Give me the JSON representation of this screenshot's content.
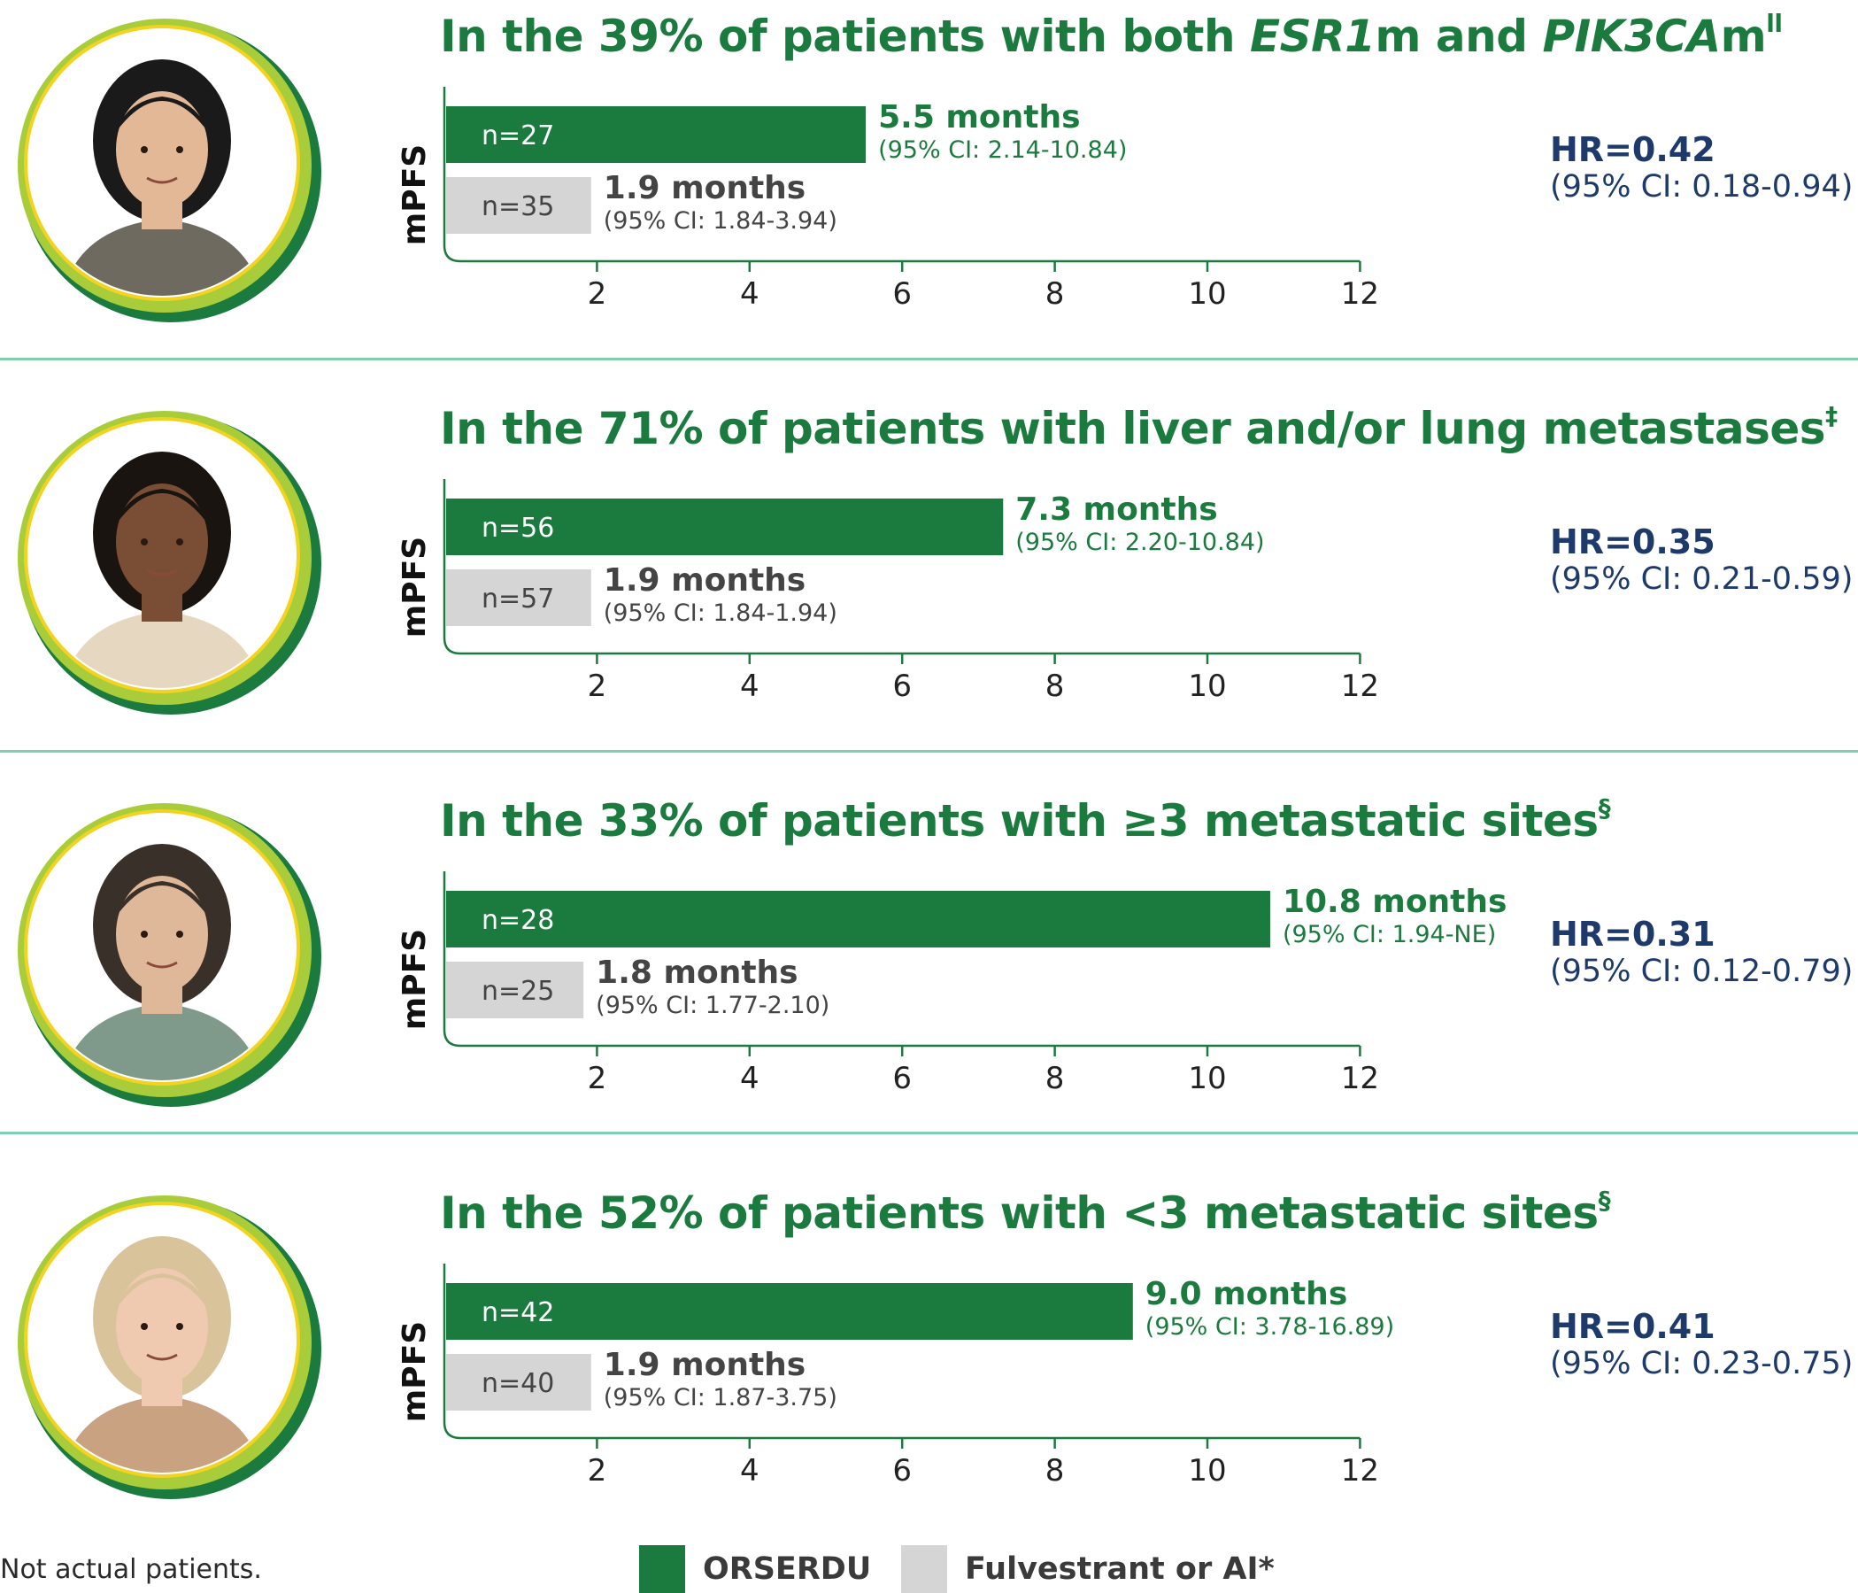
{
  "colors": {
    "orserdu": "#1b7a3e",
    "comparator": "#d5d5d5",
    "hr_text": "#1e3a6b",
    "divider": "#7fcfb0"
  },
  "chart_data": [
    {
      "type": "bar",
      "title_parts": [
        {
          "text": "In the 39% of patients with both ",
          "style": "normal"
        },
        {
          "text": "ESR1",
          "style": "italic"
        },
        {
          "text": "m and ",
          "style": "normal"
        },
        {
          "text": "PIK3CA",
          "style": "italic"
        },
        {
          "text": "m",
          "style": "normal"
        },
        {
          "text": "ll",
          "style": "sup"
        }
      ],
      "ylabel": "mPFS",
      "xticks": [
        2,
        4,
        6,
        8,
        10,
        12
      ],
      "xlim": [
        0,
        12
      ],
      "series": [
        {
          "name": "ORSERDU",
          "n": "n=27",
          "value": 5.5,
          "label": "5.5 months",
          "ci": "(95% CI: 2.14-10.84)"
        },
        {
          "name": "Fulvestrant or AI*",
          "n": "n=35",
          "value": 1.9,
          "label": "1.9 months",
          "ci": "(95% CI: 1.84-3.94)"
        }
      ],
      "hr": "HR=0.42",
      "hr_ci": "(95% CI: 0.18-0.94)"
    },
    {
      "type": "bar",
      "title_parts": [
        {
          "text": "In the 71% of patients with liver and/or lung metastases",
          "style": "normal"
        },
        {
          "text": "‡",
          "style": "sup"
        }
      ],
      "ylabel": "mPFS",
      "xticks": [
        2,
        4,
        6,
        8,
        10,
        12
      ],
      "xlim": [
        0,
        12
      ],
      "series": [
        {
          "name": "ORSERDU",
          "n": "n=56",
          "value": 7.3,
          "label": "7.3 months",
          "ci": "(95% CI: 2.20-10.84)"
        },
        {
          "name": "Fulvestrant or AI*",
          "n": "n=57",
          "value": 1.9,
          "label": "1.9 months",
          "ci": "(95% CI: 1.84-1.94)"
        }
      ],
      "hr": "HR=0.35",
      "hr_ci": "(95% CI: 0.21-0.59)"
    },
    {
      "type": "bar",
      "title_parts": [
        {
          "text": "In the 33% of patients with ≥3 metastatic sites",
          "style": "normal"
        },
        {
          "text": "§",
          "style": "sup"
        }
      ],
      "ylabel": "mPFS",
      "xticks": [
        2,
        4,
        6,
        8,
        10,
        12
      ],
      "xlim": [
        0,
        12
      ],
      "series": [
        {
          "name": "ORSERDU",
          "n": "n=28",
          "value": 10.8,
          "label": "10.8 months",
          "ci": "(95% CI: 1.94-NE)"
        },
        {
          "name": "Fulvestrant or AI*",
          "n": "n=25",
          "value": 1.8,
          "label": "1.8 months",
          "ci": "(95% CI: 1.77-2.10)"
        }
      ],
      "hr": "HR=0.31",
      "hr_ci": "(95% CI: 0.12-0.79)"
    },
    {
      "type": "bar",
      "title_parts": [
        {
          "text": "In the 52% of patients with <3 metastatic sites",
          "style": "normal"
        },
        {
          "text": "§",
          "style": "sup"
        }
      ],
      "ylabel": "mPFS",
      "xticks": [
        2,
        4,
        6,
        8,
        10,
        12
      ],
      "xlim": [
        0,
        12
      ],
      "series": [
        {
          "name": "ORSERDU",
          "n": "n=42",
          "value": 9.0,
          "label": "9.0 months",
          "ci": "(95% CI: 3.78-16.89)"
        },
        {
          "name": "Fulvestrant or AI*",
          "n": "n=40",
          "value": 1.9,
          "label": "1.9 months",
          "ci": "(95% CI: 1.87-3.75)"
        }
      ],
      "hr": "HR=0.41",
      "hr_ci": "(95% CI: 0.23-0.75)"
    }
  ],
  "avatars": [
    {
      "hair": "#1a1a1a",
      "skin": "#e2b896",
      "top": "#6e6a60"
    },
    {
      "hair": "#1a1410",
      "skin": "#7a4e34",
      "top": "#e6d8c0"
    },
    {
      "hair": "#3a302a",
      "skin": "#dfb89a",
      "top": "#7f9a8a"
    },
    {
      "hair": "#d9c39a",
      "skin": "#efcab0",
      "top": "#c9a282"
    }
  ],
  "footer": {
    "note": "Not actual patients.",
    "legend": [
      {
        "label": "ORSERDU",
        "color": "#1b7a3e"
      },
      {
        "label": "Fulvestrant or AI*",
        "color": "#d5d5d5"
      }
    ]
  }
}
